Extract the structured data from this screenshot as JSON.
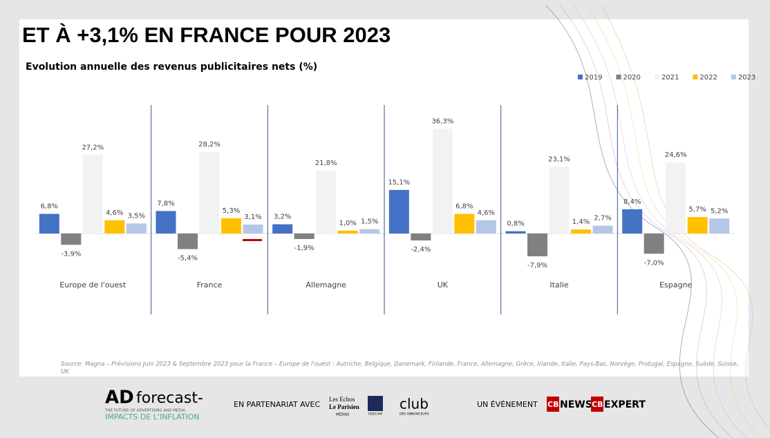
{
  "header": {
    "title": "ET À +3,1% EN FRANCE POUR 2023"
  },
  "chart_data": {
    "type": "bar",
    "title": "Evolution annuelle des revenus publicitaires nets (%)",
    "categories": [
      "Europe de l'ouest",
      "France",
      "Allemagne",
      "UK",
      "Italie",
      "Espagne"
    ],
    "ylim": [
      -28,
      45
    ],
    "legend": "top-right",
    "series": [
      {
        "name": "2019",
        "color": "#4472c4",
        "values": [
          6.8,
          7.8,
          3.2,
          15.1,
          0.8,
          8.4
        ],
        "value_labels": [
          "6,8%",
          "7,8%",
          "3,2%",
          "15,1%",
          "0,8%",
          "8,4%"
        ]
      },
      {
        "name": "2020",
        "color": "#808080",
        "values": [
          -3.9,
          -5.4,
          -1.9,
          -2.4,
          -7.9,
          -7.0
        ],
        "value_labels": [
          "-3,9%",
          "-5,4%",
          "-1,9%",
          "-2,4%",
          "-7,9%",
          "-7,0%"
        ]
      },
      {
        "name": "2021",
        "color": "#f2f2f2",
        "values": [
          27.2,
          28.2,
          21.8,
          36.3,
          23.1,
          24.6
        ],
        "value_labels": [
          "27,2%",
          "28,2%",
          "21,8%",
          "36,3%",
          "23,1%",
          "24,6%"
        ]
      },
      {
        "name": "2022",
        "color": "#ffc000",
        "values": [
          4.6,
          5.3,
          1.0,
          6.8,
          1.4,
          5.7
        ],
        "value_labels": [
          "4,6%",
          "5,3%",
          "1,0%",
          "6,8%",
          "1,4%",
          "5,7%"
        ]
      },
      {
        "name": "2023",
        "color": "#b4c7e7",
        "values": [
          3.5,
          3.1,
          1.5,
          4.6,
          2.7,
          5.2
        ],
        "value_labels": [
          "3,5%",
          "3,1%",
          "1,5%",
          "4,6%",
          "2,7%",
          "5,2%"
        ]
      }
    ],
    "source": "Source:  Magna – Prévisions Juin 2023 & Septembre  2023 pour la France – Europe de l'ouest : Autriche, Belgique, Danemark, Finlande, France, Allemagne, Grèce, Irlande, Italie, Pays-Bas, Norvège, Protugal, Espagne, Suède, Suisse,",
    "source_end": "UK"
  },
  "footer": {
    "brand": "AD",
    "brand_word": "forecast-",
    "tagline": "THE FUTURE OF ADVERTISING AND MEDIA",
    "theme": "IMPACTS DE L'INFLATION",
    "partner_label": "EN PARTENARIAT AVEC",
    "partner1a": "Les Echos",
    "partner1b": "Le Parisien",
    "partner1c": "MÉDIAS",
    "partner2": "UDECAM",
    "partner3": "club",
    "partner3b": "DES ANNONCEURS",
    "event_label": "UN ÉVÉNEMENT",
    "event1": "NEWS",
    "event2": "EXPERT",
    "cb": "CB"
  }
}
